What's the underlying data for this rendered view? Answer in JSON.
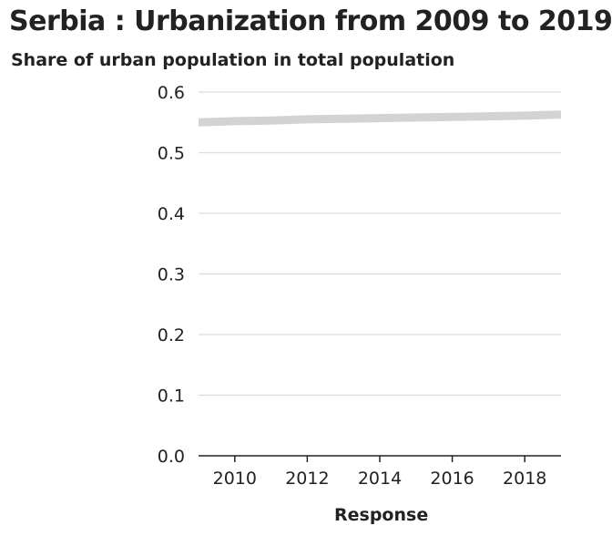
{
  "chart_data": {
    "type": "line",
    "title": "Serbia : Urbanization from 2009 to 2019",
    "ylabel": "Share of urban population in total population",
    "xlabel": "Response",
    "x": [
      2009,
      2010,
      2011,
      2012,
      2013,
      2014,
      2015,
      2016,
      2017,
      2018,
      2019
    ],
    "series": [
      {
        "values": [
          0.55,
          0.552,
          0.553,
          0.555,
          0.556,
          0.557,
          0.558,
          0.559,
          0.56,
          0.561,
          0.563
        ],
        "color": "#d3d3d3"
      }
    ],
    "xlim": [
      2009,
      2019
    ],
    "ylim": [
      0,
      0.6
    ],
    "xticks": [
      2010,
      2012,
      2014,
      2016,
      2018
    ],
    "yticks": [
      0.0,
      0.1,
      0.2,
      0.3,
      0.4,
      0.5,
      0.6
    ],
    "ytick_labels": [
      "0.0",
      "0.1",
      "0.2",
      "0.3",
      "0.4",
      "0.5",
      "0.6"
    ],
    "grid": true
  }
}
